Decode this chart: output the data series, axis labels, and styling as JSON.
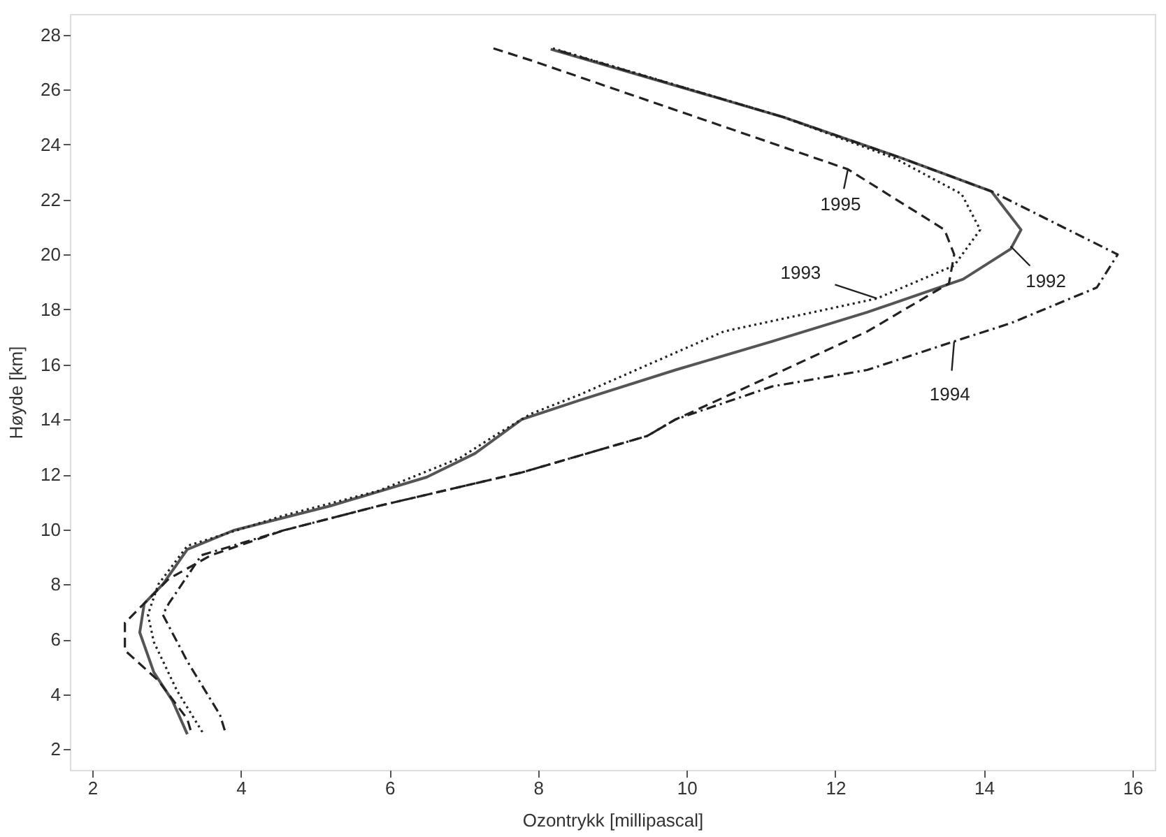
{
  "chart_data": {
    "type": "line",
    "xlabel": "Ozontrykk [millipascal]",
    "ylabel": "Høyde [km]",
    "xlim": [
      1.7,
      16.3
    ],
    "ylim": [
      1.25,
      28.75
    ],
    "xticks": [
      2,
      4,
      6,
      8,
      10,
      12,
      14,
      16
    ],
    "yticks": [
      2,
      4,
      6,
      8,
      10,
      12,
      14,
      16,
      18,
      20,
      22,
      24,
      26,
      28
    ],
    "grid": false,
    "series": [
      {
        "color": "#555555",
        "line_style": "solid",
        "x": [
          8.17,
          11.3,
          12.9,
          14.1,
          14.5,
          14.36,
          13.72,
          12.43,
          11.15,
          9.85,
          8.56,
          7.78,
          7.15,
          6.5,
          5.2,
          3.9,
          3.28,
          2.95,
          2.7,
          2.64,
          2.83,
          3.08,
          3.28
        ],
        "values": [
          27.47,
          25,
          23.5,
          22.3,
          20.9,
          20.2,
          19.1,
          17.9,
          16.84,
          15.8,
          14.7,
          14.0,
          12.76,
          11.9,
          10.85,
          9.96,
          9.27,
          8.0,
          7.3,
          6.25,
          4.8,
          3.77,
          2.55
        ]
      },
      {
        "color": "#222222",
        "line_style": "dotted",
        "x": [
          8.2,
          11.3,
          12.8,
          13.7,
          13.95,
          13.6,
          12.56,
          10.5,
          8.56,
          7.9,
          7.47,
          6.95,
          5.85,
          4.57,
          3.28,
          2.89,
          2.75,
          2.83,
          3.14,
          3.5
        ],
        "values": [
          27.5,
          25,
          23.5,
          22.2,
          20.9,
          19.6,
          18.4,
          17.2,
          14.9,
          14.2,
          13.5,
          12.6,
          11.4,
          10.5,
          9.4,
          8.0,
          6.9,
          5.9,
          4.14,
          2.55
        ]
      },
      {
        "color": "#222222",
        "line_style": "dashdot",
        "x": [
          8.3,
          11.3,
          12.9,
          14.1,
          15.8,
          15.52,
          14.36,
          13.6,
          12.43,
          11.15,
          9.85,
          9.47,
          7.78,
          5.85,
          4.57,
          3.47,
          3.03,
          2.95,
          3.28,
          3.72,
          3.8
        ],
        "values": [
          27.4,
          25,
          23.5,
          22.3,
          20.0,
          18.8,
          17.5,
          16.84,
          15.8,
          15.2,
          14.0,
          13.4,
          12.07,
          10.85,
          9.96,
          9.06,
          7.3,
          6.9,
          5.2,
          3.25,
          2.55
        ]
      },
      {
        "color": "#222222",
        "line_style": "dashed",
        "x": [
          7.4,
          7.92,
          12.17,
          13.47,
          13.6,
          13.53,
          12.43,
          11.15,
          9.85,
          9.47,
          7.78,
          5.85,
          4.57,
          3.6,
          3.03,
          2.44,
          2.44,
          2.89,
          3.28,
          3.34
        ],
        "values": [
          27.5,
          27.05,
          23.1,
          20.9,
          20.0,
          18.95,
          17.2,
          15.6,
          14.0,
          13.4,
          12.07,
          10.85,
          9.96,
          9.06,
          8.2,
          6.6,
          5.6,
          4.5,
          3.1,
          2.55
        ]
      }
    ],
    "annotations": [
      {
        "text": "1995",
        "x": 12.17,
        "y": 23.1
      },
      {
        "text": "1993",
        "x": 12.56,
        "y": 18.4
      },
      {
        "text": "1992",
        "x": 14.36,
        "y": 20.3
      },
      {
        "text": "1994",
        "x": 13.6,
        "y": 16.84
      }
    ]
  }
}
